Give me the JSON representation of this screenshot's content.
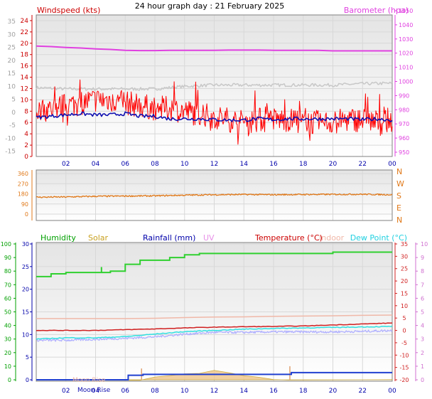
{
  "page": {
    "title": "24 hour graph day : 21 February 2025"
  },
  "colors": {
    "windspeed": "#ff0000",
    "gust_grey": "#c8c8c8",
    "wind_blue": "#1010b0",
    "barometer": "#e040e0",
    "direction": "#e07818",
    "humidity": "#30d030",
    "solar": "#c8a020",
    "rainfall": "#2040d0",
    "uv": "#d070d0",
    "temperature": "#d02020",
    "indoor": "#f0b8a8",
    "dewpoint": "#30e0e0",
    "lavender": "#b0b0ff",
    "axis_left": "#cc0000",
    "axis_grey": "#a0a0a0",
    "axis_blue": "#0000aa",
    "axis_green": "#00a000"
  },
  "labels": {
    "windspeed": "Windspeed (kts)",
    "barometer": "Barometer (hpa)",
    "humidity": "Humidity",
    "solar": "Solar",
    "rainfall": "Rainfall (mm)",
    "uv": "UV",
    "temperature": "Temperature (°C)",
    "indoor": "Indoor",
    "dewpoint": "Dew Point (°C)",
    "moonrise": "Moon Rise",
    "moonrise_ghost": "Moon Rise"
  },
  "chart_data": [
    {
      "type": "line",
      "title": "24 hour graph day : 21 February 2025",
      "x_ticks": [
        "02",
        "04",
        "06",
        "08",
        "10",
        "12",
        "14",
        "16",
        "18",
        "20",
        "22",
        "00"
      ],
      "left_axis_primary": {
        "label": "Windspeed (kts)",
        "ticks": [
          0,
          2,
          4,
          6,
          8,
          10,
          12,
          14,
          16,
          18,
          20,
          22,
          24
        ]
      },
      "left_axis_secondary": {
        "ticks": [
          -15,
          -10,
          -5,
          0,
          5,
          10,
          15,
          20,
          25,
          30,
          35
        ]
      },
      "right_axis": {
        "label": "Barometer (hpa)",
        "ticks": [
          950,
          960,
          970,
          980,
          990,
          1000,
          1010,
          1020,
          1030,
          1040,
          1050
        ],
        "ylim": [
          950,
          1050
        ]
      },
      "series": [
        {
          "name": "Windspeed (kts)",
          "key": "wind_red",
          "x": [
            0,
            1,
            2,
            3,
            4,
            5,
            6,
            7,
            8,
            9,
            10,
            11,
            12,
            13,
            14,
            15,
            16,
            17,
            18,
            19,
            20,
            21,
            22,
            23,
            24
          ],
          "values": [
            8,
            8.5,
            9,
            9.5,
            10,
            10,
            9.5,
            9,
            8.5,
            8.5,
            8,
            7.5,
            7,
            6.5,
            6,
            6.5,
            6.5,
            6.5,
            6,
            6,
            6,
            6.5,
            6.5,
            6,
            6.5
          ]
        },
        {
          "key": "wind_blue",
          "x": [
            0,
            1,
            2,
            3,
            4,
            5,
            6,
            7,
            8,
            9,
            10,
            11,
            12,
            13,
            14,
            15,
            16,
            17,
            18,
            19,
            20,
            21,
            22,
            23,
            24
          ],
          "values": [
            -2,
            -1.5,
            -1,
            -0.5,
            -1,
            -1,
            -0.5,
            -1.5,
            -1.5,
            -2.5,
            -2.5,
            -2.5,
            -2.8,
            -3,
            -3,
            -2.5,
            -2.8,
            -2.5,
            -2.5,
            -2.5,
            -2.5,
            -2.5,
            -2.8,
            -2.5,
            -3
          ]
        },
        {
          "key": "gust_grey",
          "x": [
            0,
            2,
            4,
            6,
            8,
            10,
            12,
            14,
            16,
            18,
            20,
            22,
            24
          ],
          "values": [
            9.5,
            9,
            9,
            9,
            9,
            10,
            10.5,
            10.5,
            10.5,
            10.5,
            10.5,
            11,
            11.2
          ]
        },
        {
          "name": "Barometer (hpa)",
          "key": "barometer",
          "axis": "right",
          "x": [
            0,
            1,
            2,
            3,
            4,
            5,
            6,
            7,
            8,
            9,
            10,
            11,
            12,
            13,
            14,
            15,
            16,
            17,
            18,
            19,
            20,
            21,
            22,
            23,
            24
          ],
          "values": [
            1025,
            1024.6,
            1024,
            1023.6,
            1023,
            1022.6,
            1022,
            1021.8,
            1021.8,
            1022,
            1022,
            1022,
            1022,
            1022.2,
            1022.2,
            1022.2,
            1022,
            1022,
            1022,
            1022,
            1021.6,
            1021.6,
            1021.6,
            1021.6,
            1021.6
          ]
        }
      ]
    },
    {
      "type": "line",
      "x_ticks": [
        "02",
        "04",
        "06",
        "08",
        "10",
        "12",
        "14",
        "16",
        "18",
        "20",
        "22",
        "00"
      ],
      "left_axis": {
        "ticks": [
          0,
          90,
          180,
          270,
          360
        ],
        "ylim": [
          0,
          360
        ]
      },
      "right_axis": {
        "ticks": [
          "N",
          "W",
          "S",
          "E",
          "N"
        ]
      },
      "series": [
        {
          "key": "direction",
          "x": [
            0,
            2,
            4,
            6,
            8,
            10,
            12,
            14,
            16,
            18,
            20,
            22,
            24
          ],
          "values": [
            150,
            152,
            158,
            160,
            162,
            168,
            172,
            174,
            172,
            174,
            175,
            176,
            172
          ]
        }
      ]
    },
    {
      "type": "line",
      "x_ticks": [
        "02",
        "04",
        "06",
        "08",
        "10",
        "12",
        "14",
        "16",
        "18",
        "20",
        "22",
        "00"
      ],
      "left_axis_outer": {
        "ticks": [
          0,
          10,
          20,
          30,
          40,
          50,
          60,
          70,
          80,
          90,
          100
        ]
      },
      "left_axis_inner": {
        "label": "Rainfall (mm)",
        "ticks": [
          0,
          5,
          10,
          15,
          20,
          25,
          30
        ]
      },
      "right_axis_temperature": {
        "label": "Temperature (°C)",
        "ticks": [
          -20,
          -15,
          -10,
          -5,
          0,
          5,
          10,
          15,
          20,
          25,
          30,
          35
        ]
      },
      "right_axis_uv": {
        "label": "UV",
        "ticks": [
          0,
          1,
          2,
          3,
          4,
          5,
          6,
          7,
          8,
          9,
          10
        ]
      },
      "series": [
        {
          "name": "Humidity",
          "key": "humidity",
          "x": [
            0,
            1,
            2,
            3,
            4,
            5,
            6,
            7,
            8,
            9,
            10,
            11,
            12,
            13,
            14,
            15,
            16,
            17,
            18,
            19,
            20,
            21,
            22,
            23,
            24
          ],
          "values": [
            76,
            78,
            79,
            79,
            79,
            80,
            85,
            88,
            88,
            90,
            92,
            93,
            93,
            93,
            93,
            93,
            93,
            93,
            93,
            93,
            94,
            94,
            94,
            94,
            94
          ]
        },
        {
          "name": "Rainfall (mm)",
          "key": "rainfall",
          "x": [
            0,
            5.8,
            6.2,
            7,
            7.2,
            8,
            10,
            12,
            14,
            16,
            17,
            17.2,
            18,
            20,
            22,
            24
          ],
          "values": [
            0,
            0,
            1,
            1,
            1.2,
            1.2,
            1.2,
            1.2,
            1.2,
            1.2,
            1.2,
            1.6,
            1.6,
            1.6,
            1.6,
            1.6
          ]
        },
        {
          "name": "Temperature (°C)",
          "key": "temperature",
          "x": [
            0,
            2,
            4,
            6,
            8,
            10,
            12,
            14,
            16,
            18,
            20,
            22,
            24
          ],
          "values": [
            0,
            0,
            0,
            0.3,
            0.6,
            1,
            1.3,
            1.5,
            1.6,
            1.8,
            2.2,
            2.6,
            3
          ]
        },
        {
          "name": "Indoor",
          "key": "indoor",
          "x": [
            0,
            4,
            6,
            8,
            10,
            12,
            14,
            16,
            18,
            20,
            22,
            24
          ],
          "values": [
            4.8,
            4.8,
            4.8,
            4.9,
            5.2,
            5.4,
            5.5,
            5.7,
            5.8,
            5.9,
            6.1,
            6.2
          ]
        },
        {
          "name": "Dew Point (°C)",
          "key": "dewpoint",
          "x": [
            0,
            2,
            4,
            6,
            8,
            10,
            12,
            14,
            16,
            18,
            20,
            22,
            24
          ],
          "values": [
            -3.5,
            -3,
            -3,
            -2.5,
            -1.5,
            -0.5,
            0,
            0.5,
            0.8,
            1,
            1.2,
            1.4,
            1.6
          ]
        },
        {
          "key": "lavender",
          "x": [
            0,
            2,
            4,
            6,
            8,
            10,
            12,
            14,
            16,
            18,
            20,
            22,
            24
          ],
          "values": [
            -4,
            -4,
            -3.6,
            -3.2,
            -2.6,
            -1.5,
            -0.8,
            -0.8,
            -0.6,
            -0.6,
            -0.6,
            -0.4,
            0
          ]
        },
        {
          "name": "Solar",
          "key": "solar",
          "x": [
            0,
            7,
            8,
            9,
            10,
            11,
            12,
            13,
            14,
            15,
            16,
            17,
            24
          ],
          "values": [
            0,
            0,
            0.5,
            1,
            1.2,
            1.5,
            2,
            1.5,
            1,
            0.5,
            0.2,
            0,
            0
          ]
        }
      ]
    }
  ]
}
